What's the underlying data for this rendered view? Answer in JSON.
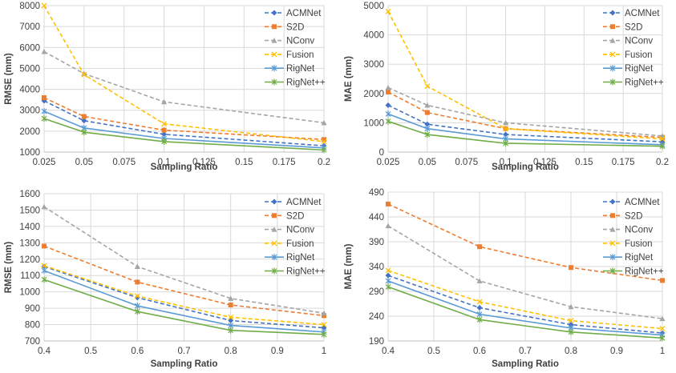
{
  "colors": {
    "ACMNet": "#4472c4",
    "S2D": "#ed7d31",
    "NConv": "#a5a5a5",
    "Fusion": "#ffc000",
    "RigNet": "#5b9bd5",
    "RigNet++": "#70ad47"
  },
  "chart_data": [
    {
      "type": "line",
      "xlabel": "Sampling Ratio",
      "ylabel": "RMSE (mm)",
      "x": [
        0.025,
        0.05,
        0.1,
        0.2
      ],
      "xlim": [
        0.025,
        0.2
      ],
      "xticks": [
        "0.025",
        "0.05",
        "0.075",
        "0.1",
        "0.125",
        "0.15",
        "0.175",
        "0.2"
      ],
      "ylim": [
        1000,
        8000
      ],
      "yticks": [
        "1000",
        "2000",
        "3000",
        "4000",
        "5000",
        "6000",
        "7000",
        "8000"
      ],
      "legend_position": "top-right",
      "series": [
        {
          "name": "ACMNet",
          "values": [
            3450,
            2500,
            1850,
            1300
          ]
        },
        {
          "name": "S2D",
          "values": [
            3600,
            2700,
            2050,
            1600
          ]
        },
        {
          "name": "NConv",
          "values": [
            5800,
            4750,
            3400,
            2400
          ]
        },
        {
          "name": "Fusion",
          "values": [
            8000,
            4700,
            2350,
            1500
          ]
        },
        {
          "name": "RigNet",
          "values": [
            2950,
            2150,
            1650,
            1200
          ]
        },
        {
          "name": "RigNet++",
          "values": [
            2600,
            1950,
            1500,
            1100
          ]
        }
      ]
    },
    {
      "type": "line",
      "xlabel": "Sampling Ratio",
      "ylabel": "MAE (mm)",
      "x": [
        0.025,
        0.05,
        0.1,
        0.2
      ],
      "xlim": [
        0.025,
        0.2
      ],
      "xticks": [
        "0.025",
        "0.05",
        "0.075",
        "0.1",
        "0.125",
        "0.15",
        "0.175",
        "0.2"
      ],
      "ylim": [
        0,
        5000
      ],
      "yticks": [
        "0",
        "1000",
        "2000",
        "3000",
        "4000",
        "5000"
      ],
      "legend_position": "top-right",
      "series": [
        {
          "name": "ACMNet",
          "values": [
            1600,
            950,
            600,
            350
          ]
        },
        {
          "name": "S2D",
          "values": [
            2050,
            1350,
            800,
            500
          ]
        },
        {
          "name": "NConv",
          "values": [
            2200,
            1600,
            1000,
            550
          ]
        },
        {
          "name": "Fusion",
          "values": [
            4800,
            2250,
            800,
            450
          ]
        },
        {
          "name": "RigNet",
          "values": [
            1300,
            800,
            450,
            250
          ]
        },
        {
          "name": "RigNet++",
          "values": [
            1050,
            600,
            300,
            200
          ]
        }
      ]
    },
    {
      "type": "line",
      "xlabel": "Sampling Ratio",
      "ylabel": "RMSE (mm)",
      "x": [
        0.4,
        0.6,
        0.8,
        1
      ],
      "xlim": [
        0.4,
        1
      ],
      "xticks": [
        "0.4",
        "0.5",
        "0.6",
        "0.7",
        "0.8",
        "0.9",
        "1"
      ],
      "ylim": [
        700,
        1600
      ],
      "yticks": [
        "700",
        "800",
        "900",
        "1000",
        "1100",
        "1200",
        "1300",
        "1400",
        "1500",
        "1600"
      ],
      "legend_position": "top-right",
      "series": [
        {
          "name": "ACMNet",
          "values": [
            1155,
            965,
            825,
            780
          ]
        },
        {
          "name": "S2D",
          "values": [
            1280,
            1060,
            920,
            855
          ]
        },
        {
          "name": "NConv",
          "values": [
            1520,
            1155,
            960,
            870
          ]
        },
        {
          "name": "Fusion",
          "values": [
            1160,
            975,
            845,
            800
          ]
        },
        {
          "name": "RigNet",
          "values": [
            1130,
            915,
            795,
            755
          ]
        },
        {
          "name": "RigNet++",
          "values": [
            1075,
            880,
            765,
            740
          ]
        }
      ]
    },
    {
      "type": "line",
      "xlabel": "Sampling Ratio",
      "ylabel": "MAE (mm)",
      "x": [
        0.4,
        0.6,
        0.8,
        1
      ],
      "xlim": [
        0.4,
        1
      ],
      "xticks": [
        "0.4",
        "0.5",
        "0.6",
        "0.7",
        "0.8",
        "0.9",
        "1"
      ],
      "ylim": [
        190,
        490
      ],
      "yticks": [
        "190",
        "240",
        "290",
        "340",
        "390",
        "440",
        "490"
      ],
      "legend_position": "top-right",
      "series": [
        {
          "name": "ACMNet",
          "values": [
            322,
            257,
            223,
            206
          ]
        },
        {
          "name": "S2D",
          "values": [
            466,
            380,
            338,
            312
          ]
        },
        {
          "name": "NConv",
          "values": [
            422,
            311,
            259,
            235
          ]
        },
        {
          "name": "Fusion",
          "values": [
            332,
            269,
            231,
            215
          ]
        },
        {
          "name": "RigNet",
          "values": [
            311,
            244,
            216,
            202
          ]
        },
        {
          "name": "RigNet++",
          "values": [
            299,
            233,
            208,
            196
          ]
        }
      ]
    }
  ]
}
